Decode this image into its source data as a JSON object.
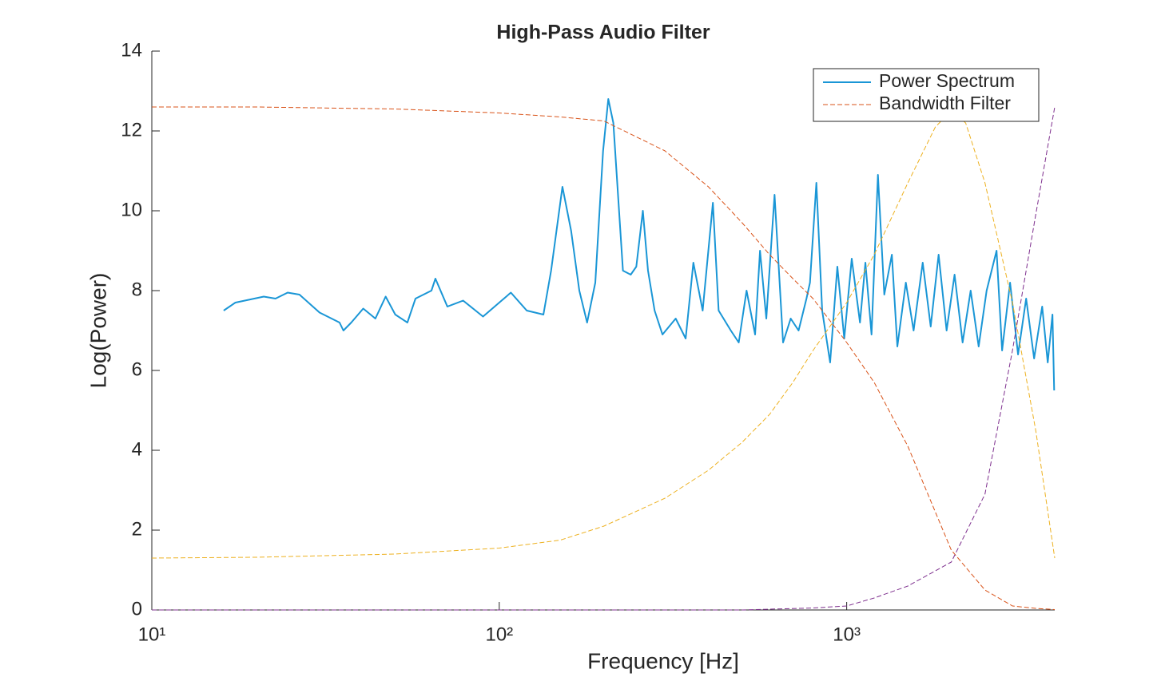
{
  "chart_data": {
    "type": "line",
    "title": "High-Pass Audio Filter",
    "x_label": "Frequency [Hz]",
    "y_label": "Log(Power)",
    "xscale": "log",
    "xlim": [
      10,
      3970
    ],
    "ylim": [
      0,
      14
    ],
    "xticks": [
      {
        "value": 10,
        "label": "10¹"
      },
      {
        "value": 100,
        "label": "10²"
      },
      {
        "value": 1000,
        "label": "10³"
      }
    ],
    "yticks": [
      0,
      2,
      4,
      6,
      8,
      10,
      12,
      14
    ],
    "legend": "upper right",
    "series": [
      {
        "name": "Power Spectrum",
        "color": "#1a96d6",
        "style": "solid",
        "x": [
          16.1,
          17.4,
          21,
          22.7,
          24.6,
          26.6,
          30.4,
          34.7,
          35.6,
          37.5,
          40.6,
          44,
          47.1,
          50.2,
          54.4,
          57.4,
          63.8,
          65.5,
          70.9,
          78.7,
          89.8,
          100,
          108,
          120,
          134,
          141,
          152,
          161,
          170,
          179,
          189,
          199,
          206,
          213,
          227,
          239,
          248,
          259,
          268,
          280,
          295,
          322,
          344,
          362,
          385,
          412,
          428,
          464,
          489,
          515,
          545,
          563,
          587,
          620,
          656,
          690,
          727,
          766,
          784,
          818,
          850,
          896,
          940,
          984,
          1034,
          1092,
          1132,
          1179,
          1230,
          1283,
          1349,
          1399,
          1480,
          1558,
          1655,
          1745,
          1839,
          1939,
          2044,
          2156,
          2274,
          2398,
          2528,
          2700,
          2801,
          2953,
          3113,
          3285,
          3463,
          3653,
          3790,
          3911,
          3955
        ],
        "values": [
          7.5,
          7.7,
          7.85,
          7.8,
          7.95,
          7.9,
          7.45,
          7.2,
          7.0,
          7.2,
          7.55,
          7.3,
          7.85,
          7.4,
          7.2,
          7.8,
          8.0,
          8.3,
          7.6,
          7.75,
          7.35,
          7.7,
          7.95,
          7.5,
          7.4,
          8.5,
          10.6,
          9.5,
          8.0,
          7.2,
          8.2,
          11.5,
          12.8,
          12.2,
          8.5,
          8.4,
          8.6,
          10.0,
          8.5,
          7.5,
          6.9,
          7.3,
          6.8,
          8.7,
          7.5,
          10.2,
          7.5,
          7.0,
          6.7,
          8.0,
          6.9,
          9.0,
          7.3,
          10.4,
          6.7,
          7.3,
          7.0,
          7.8,
          8.2,
          10.7,
          7.5,
          6.2,
          8.6,
          6.8,
          8.8,
          7.2,
          8.7,
          6.9,
          10.9,
          7.9,
          8.9,
          6.6,
          8.2,
          7.0,
          8.7,
          7.1,
          8.9,
          7.0,
          8.4,
          6.7,
          8.0,
          6.6,
          8.0,
          9.0,
          6.5,
          8.2,
          6.4,
          7.8,
          6.3,
          7.6,
          6.2,
          7.4,
          5.5
        ]
      },
      {
        "name": "Bandwidth Filter",
        "color": "#d95319",
        "style": "dashed",
        "x": [
          10,
          20,
          50,
          100,
          150,
          200,
          300,
          400,
          500,
          600,
          700,
          800,
          1000,
          1200,
          1500,
          2000,
          2500,
          3000,
          3500,
          3970
        ],
        "values": [
          12.6,
          12.6,
          12.55,
          12.45,
          12.35,
          12.25,
          11.5,
          10.6,
          9.7,
          8.9,
          8.3,
          7.8,
          6.7,
          5.7,
          4.1,
          1.5,
          0.5,
          0.1,
          0.04,
          0.01
        ]
      },
      {
        "color": "#edb120",
        "style": "dashed",
        "x": [
          10,
          20,
          50,
          100,
          150,
          200,
          300,
          400,
          500,
          600,
          700,
          800,
          1000,
          1200,
          1500,
          1800,
          2000,
          2200,
          2500,
          3000,
          3500,
          3970
        ],
        "values": [
          1.3,
          1.32,
          1.4,
          1.55,
          1.75,
          2.1,
          2.8,
          3.5,
          4.2,
          4.9,
          5.7,
          6.5,
          7.7,
          8.9,
          10.7,
          12.1,
          12.5,
          12.2,
          10.7,
          7.7,
          4.5,
          1.3
        ]
      },
      {
        "color": "#7e2f8e",
        "style": "dashed",
        "x": [
          10,
          100,
          500,
          600,
          800,
          1000,
          1200,
          1500,
          2000,
          2500,
          3000,
          3500,
          3970
        ],
        "values": [
          0,
          0,
          0,
          0.02,
          0.05,
          0.1,
          0.3,
          0.6,
          1.2,
          2.9,
          6.5,
          9.9,
          12.6
        ]
      }
    ]
  }
}
